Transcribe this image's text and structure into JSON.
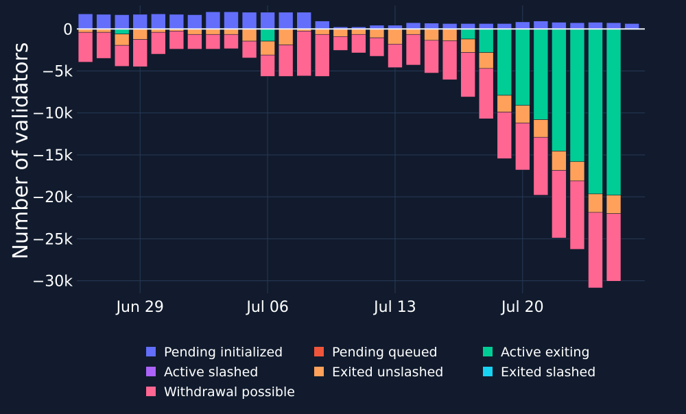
{
  "chart_data": {
    "type": "bar",
    "stacking": "relative",
    "ylabel": "Number of validators",
    "xlabel": "",
    "ylim": [
      -31500,
      2800
    ],
    "y_ticks": [
      0,
      -5000,
      -10000,
      -15000,
      -20000,
      -25000,
      -30000
    ],
    "y_tick_labels": [
      "0",
      "−5k",
      "−10k",
      "−15k",
      "−20k",
      "−25k",
      "−30k"
    ],
    "x_ticks": [
      {
        "label": "Jun 29",
        "category": "2023-06-29"
      },
      {
        "label": "Jul 06",
        "category": "2023-07-06"
      },
      {
        "label": "Jul 13",
        "category": "2023-07-13"
      },
      {
        "label": "Jul 20",
        "category": "2023-07-20"
      }
    ],
    "grid": true,
    "legend_position": "bottom",
    "categories": [
      "2023-06-26",
      "2023-06-27",
      "2023-06-28",
      "2023-06-29",
      "2023-06-30",
      "2023-07-01",
      "2023-07-02",
      "2023-07-03",
      "2023-07-04",
      "2023-07-05",
      "2023-07-06",
      "2023-07-07",
      "2023-07-08",
      "2023-07-09",
      "2023-07-10",
      "2023-07-11",
      "2023-07-12",
      "2023-07-13",
      "2023-07-14",
      "2023-07-15",
      "2023-07-16",
      "2023-07-17",
      "2023-07-18",
      "2023-07-19",
      "2023-07-20",
      "2023-07-21",
      "2023-07-22",
      "2023-07-23",
      "2023-07-24",
      "2023-07-25",
      "2023-07-26",
      "2023-07-27",
      "2023-07-28",
      "2023-07-29",
      "2023-07-30",
      "2023-07-31"
    ],
    "series": [
      {
        "name": "Pending initialized",
        "color": "#636efa",
        "values": [
          1800,
          1750,
          1700,
          1750,
          1800,
          1750,
          1700,
          2050,
          2050,
          2000,
          2000,
          2000,
          2000,
          950,
          250,
          250,
          450,
          450,
          750,
          700,
          650,
          650,
          650,
          650,
          850,
          950,
          800,
          750,
          800,
          750,
          650,
          0,
          0,
          0,
          0,
          0
        ]
      },
      {
        "name": "Pending queued",
        "color": "#ef553b",
        "values": [
          0,
          0,
          0,
          0,
          0,
          0,
          0,
          0,
          0,
          0,
          0,
          0,
          0,
          0,
          0,
          0,
          0,
          0,
          0,
          0,
          0,
          0,
          0,
          0,
          0,
          0,
          0,
          0,
          0,
          0,
          0,
          0,
          0,
          0,
          0,
          0
        ]
      },
      {
        "name": "Active exiting",
        "color": "#00cc96",
        "values": [
          0,
          0,
          -600,
          0,
          0,
          0,
          0,
          0,
          0,
          0,
          -1450,
          0,
          0,
          0,
          0,
          0,
          0,
          0,
          0,
          0,
          0,
          -1200,
          -2800,
          -7900,
          -9100,
          -10800,
          -14550,
          -15800,
          -19650,
          -19800,
          0,
          0,
          0,
          0,
          0,
          0
        ]
      },
      {
        "name": "Active slashed",
        "color": "#ab63fa",
        "values": [
          0,
          0,
          0,
          0,
          0,
          0,
          0,
          0,
          0,
          0,
          0,
          0,
          0,
          0,
          0,
          0,
          0,
          0,
          0,
          0,
          0,
          0,
          0,
          0,
          0,
          0,
          0,
          0,
          0,
          0,
          0,
          0,
          0,
          0,
          0,
          0
        ]
      },
      {
        "name": "Exited unslashed",
        "color": "#ffa15a",
        "values": [
          -400,
          -400,
          -1350,
          -1250,
          -400,
          -250,
          -650,
          -650,
          -650,
          -1450,
          -1650,
          -1900,
          -250,
          -650,
          -900,
          -650,
          -1050,
          -1800,
          -650,
          -1350,
          -1400,
          -1600,
          -1900,
          -2000,
          -2100,
          -2100,
          -2300,
          -2300,
          -2200,
          -2200,
          0,
          0,
          0,
          0,
          0,
          0
        ]
      },
      {
        "name": "Exited slashed",
        "color": "#19d3f3",
        "values": [
          0,
          0,
          0,
          0,
          0,
          0,
          0,
          0,
          0,
          0,
          0,
          0,
          0,
          0,
          0,
          0,
          0,
          0,
          0,
          0,
          0,
          0,
          0,
          0,
          0,
          0,
          0,
          0,
          0,
          0,
          0,
          0,
          0,
          0,
          0,
          0
        ]
      },
      {
        "name": "Withdrawal possible",
        "color": "#ff6692",
        "values": [
          -3550,
          -3100,
          -2500,
          -3250,
          -2600,
          -2150,
          -1750,
          -1750,
          -1700,
          -2000,
          -2550,
          -3750,
          -5350,
          -5000,
          -1650,
          -2200,
          -2200,
          -2800,
          -3650,
          -3900,
          -4650,
          -5300,
          -6000,
          -5550,
          -5600,
          -6900,
          -8050,
          -8150,
          -9000,
          -8050,
          0,
          0,
          0,
          0,
          0,
          0
        ]
      }
    ]
  }
}
